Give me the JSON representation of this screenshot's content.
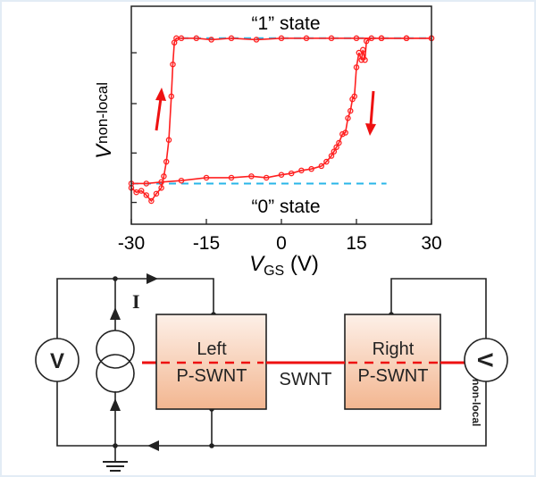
{
  "chart_data": {
    "type": "line",
    "xlabel": "V",
    "xlabel_sub": "GS",
    "xlabel_unit": " (V)",
    "ylabel": "V",
    "ylabel_sub": "non-local",
    "xlim": [
      -30,
      30
    ],
    "ylim": [
      -0.28,
      1.22
    ],
    "x_ticks": [
      -30,
      -15,
      0,
      15,
      30
    ],
    "x_tick_labels": [
      "-30",
      "-15",
      "0",
      "15",
      "30"
    ],
    "y_ticks": [
      -0.13,
      0.21,
      0.55,
      0.9
    ],
    "y_tick_labels_shown": false,
    "grid": false,
    "line_color": "#ff2020",
    "reference_color": "#29b6e8",
    "series": [
      {
        "x": [
          -30,
          -29,
          -28,
          -27,
          -26,
          -25,
          -24,
          -23.5,
          -23,
          -22.5,
          -22,
          -21.7,
          -21.4,
          -21,
          -20,
          -17,
          -14,
          -10,
          -5,
          0,
          5,
          10,
          15,
          20,
          25,
          30
        ],
        "y": [
          -0.03,
          -0.06,
          -0.05,
          -0.08,
          -0.12,
          -0.07,
          -0.03,
          0.05,
          0.15,
          0.3,
          0.6,
          0.82,
          0.97,
          1.0,
          1.0,
          1.0,
          0.99,
          1.0,
          0.99,
          1.0,
          1.0,
          1.0,
          1.0,
          1.0,
          1.0,
          1.0
        ]
      },
      {
        "x": [
          30,
          25,
          20,
          18,
          17,
          16.7,
          16.3,
          16,
          15.5,
          15,
          14.6,
          14.2,
          13.8,
          13.3,
          12.8,
          12.2,
          11.5,
          11,
          10.5,
          10,
          9,
          8,
          6,
          4,
          2,
          0,
          -3,
          -6,
          -10,
          -15,
          -20,
          -24,
          -27,
          -30
        ],
        "y": [
          1.0,
          1.0,
          1.0,
          1.0,
          0.98,
          0.85,
          0.92,
          0.85,
          0.9,
          0.8,
          0.6,
          0.58,
          0.5,
          0.45,
          0.35,
          0.34,
          0.28,
          0.25,
          0.22,
          0.19,
          0.15,
          0.12,
          0.1,
          0.09,
          0.07,
          0.06,
          0.04,
          0.05,
          0.04,
          0.04,
          0.02,
          0.01,
          0.0,
          0.0
        ]
      }
    ],
    "reference_lines": [
      {
        "level": 0,
        "x_range": [
          -30,
          21
        ]
      },
      {
        "level": 1,
        "x_range": [
          -20,
          30
        ]
      }
    ],
    "annotations": {
      "state_one": "“1” state",
      "state_zero": "“0” state"
    },
    "arrows": [
      "up",
      "down"
    ]
  },
  "circuit": {
    "current_label": "I",
    "voltmeter_left": "V",
    "voltmeter_right": "V",
    "voltmeter_right_sub": "non-local",
    "left_box": {
      "line1": "Left",
      "line2": "P-SWNT"
    },
    "right_box": {
      "line1": "Right",
      "line2": "P-SWNT"
    },
    "channel_label": "SWNT",
    "box_fill_top": "#fdf0e8",
    "box_fill_bottom": "#f3b690",
    "wire_color": "#222222",
    "nanotube_color": "#ee1111"
  }
}
